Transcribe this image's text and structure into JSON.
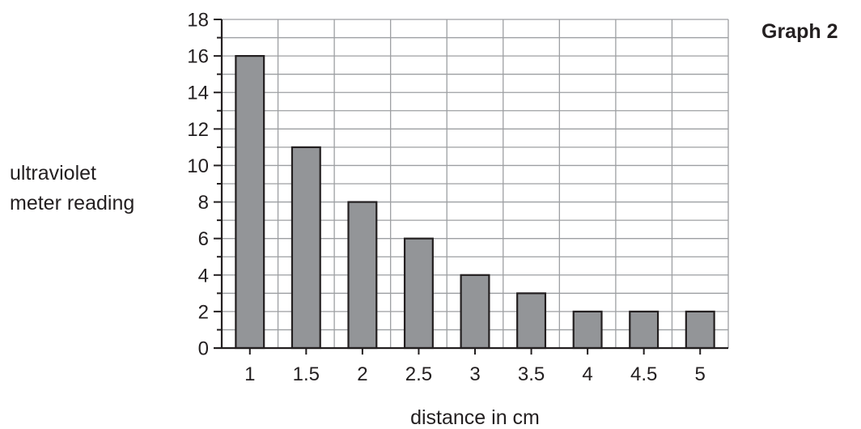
{
  "chart_data": {
    "type": "bar",
    "title": "Graph 2",
    "xlabel": "distance in cm",
    "ylabel_lines": [
      "ultraviolet",
      "meter reading"
    ],
    "categories": [
      "1",
      "1.5",
      "2",
      "2.5",
      "3",
      "3.5",
      "4",
      "4.5",
      "5"
    ],
    "values": [
      16,
      11,
      8,
      6,
      4,
      3,
      2,
      2,
      2
    ],
    "ylim": [
      0,
      18
    ],
    "y_ticks": [
      "0",
      "2",
      "4",
      "6",
      "8",
      "10",
      "12",
      "14",
      "16",
      "18"
    ],
    "y_minor_step": 1,
    "grid": true,
    "colors": {
      "bar_fill": "#939598",
      "bar_stroke": "#231f20",
      "grid": "#9d9fa2",
      "axis": "#231f20",
      "text": "#231f20"
    }
  }
}
